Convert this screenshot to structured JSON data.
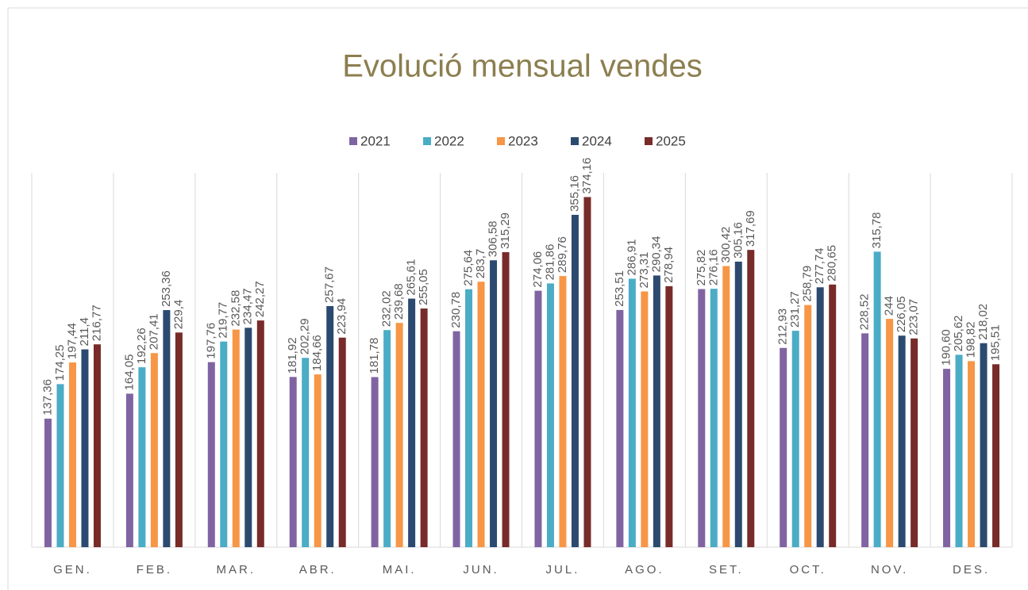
{
  "chart_data": {
    "type": "bar",
    "title": "Evolució mensual vendes",
    "categories": [
      "GEN.",
      "FEB.",
      "MAR.",
      "ABR.",
      "MAI.",
      "JUN.",
      "JUL.",
      "AGO.",
      "SET.",
      "OCT.",
      "NOV.",
      "DES."
    ],
    "series": [
      {
        "name": "2021",
        "color": "#8064a2",
        "values": [
          137.36,
          164.05,
          197.76,
          181.92,
          181.78,
          230.78,
          274.06,
          253.51,
          275.82,
          212.93,
          228.52,
          190.6
        ],
        "value_labels": [
          "137,36",
          "164,05",
          "197,76",
          "181,92",
          "181,78",
          "230,78",
          "274,06",
          "253,51",
          "275,82",
          "212,93",
          "228,52",
          "190,60"
        ]
      },
      {
        "name": "2022",
        "color": "#4bacc6",
        "values": [
          174.25,
          192.26,
          219.77,
          202.29,
          232.02,
          275.64,
          281.86,
          286.91,
          276.16,
          231.27,
          315.78,
          205.62
        ],
        "value_labels": [
          "174,25",
          "192,26",
          "219,77",
          "202,29",
          "232,02",
          "275,64",
          "281,86",
          "286,91",
          "276,16",
          "231,27",
          "315,78",
          "205,62"
        ]
      },
      {
        "name": "2023",
        "color": "#f79646",
        "values": [
          197.44,
          207.41,
          232.58,
          184.66,
          239.68,
          283.7,
          289.76,
          273.31,
          300.42,
          258.79,
          244,
          198.82
        ],
        "value_labels": [
          "197,44",
          "207,41",
          "232,58",
          "184,66",
          "239,68",
          "283,7",
          "289,76",
          "273,31",
          "300,42",
          "258,79",
          "244",
          "198,82"
        ]
      },
      {
        "name": "2024",
        "color": "#2c4a70",
        "values": [
          211.4,
          253.36,
          234.47,
          257.67,
          265.61,
          306.58,
          355.16,
          290.34,
          305.16,
          277.74,
          226.05,
          218.02
        ],
        "value_labels": [
          "211,4",
          "253,36",
          "234,47",
          "257,67",
          "265,61",
          "306,58",
          "355,16",
          "290,34",
          "305,16",
          "277,74",
          "226,05",
          "218,02"
        ]
      },
      {
        "name": "2025",
        "color": "#772c2a",
        "values": [
          216.77,
          229.4,
          242.27,
          223.94,
          255.05,
          315.29,
          374.16,
          278.94,
          317.69,
          280.65,
          223.07,
          195.51
        ],
        "value_labels": [
          "216,77",
          "229,4",
          "242,27",
          "223,94",
          "255,05",
          "315,29",
          "374,16",
          "278,94",
          "317,69",
          "280,65",
          "223,07",
          "195,51"
        ]
      }
    ],
    "ylim": [
      0,
      400
    ],
    "legend": "top"
  }
}
